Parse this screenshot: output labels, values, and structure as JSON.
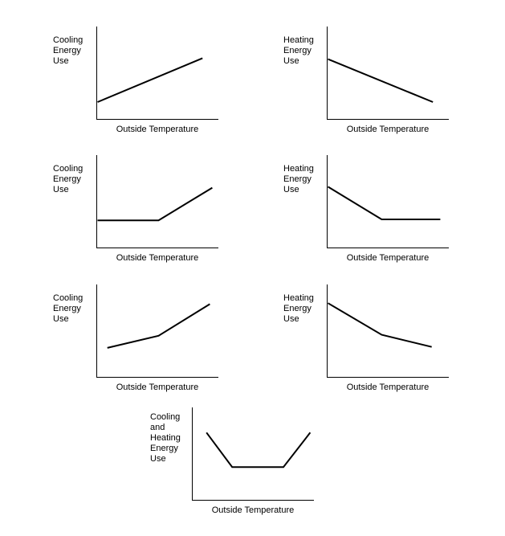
{
  "page": {
    "background": "#ffffff",
    "stroke_color": "#000000",
    "description": "Seven qualitative line charts of building energy use versus outside temperature; axes have no ticks or numbers"
  },
  "chart_data": [
    {
      "id": "cooling-linear",
      "type": "line",
      "ylabel": "Cooling\nEnergy\nUse",
      "xlabel": "Outside Temperature",
      "trend": "cooling energy use increases linearly with outside temperature",
      "axes": {
        "ticks": "none",
        "grid": false,
        "x_range_norm": [
          0,
          1
        ],
        "y_range_norm": [
          0,
          1
        ]
      },
      "series": [
        {
          "name": "cooling-energy",
          "points_norm": [
            [
              0.01,
              0.19
            ],
            [
              0.87,
              0.66
            ]
          ]
        }
      ]
    },
    {
      "id": "heating-linear",
      "type": "line",
      "ylabel": "Heating\nEnergy\nUse",
      "xlabel": "Outside Temperature",
      "trend": "heating energy use decreases linearly with outside temperature",
      "axes": {
        "ticks": "none",
        "grid": false,
        "x_range_norm": [
          0,
          1
        ],
        "y_range_norm": [
          0,
          1
        ]
      },
      "series": [
        {
          "name": "heating-energy",
          "points_norm": [
            [
              0.01,
              0.65
            ],
            [
              0.87,
              0.19
            ]
          ]
        }
      ]
    },
    {
      "id": "cooling-flat-then-rise",
      "type": "line",
      "ylabel": "Cooling\nEnergy\nUse",
      "xlabel": "Outside Temperature",
      "trend": "cooling energy use is constant at low temperature, then rises past a balance point",
      "axes": {
        "ticks": "none",
        "grid": false,
        "x_range_norm": [
          0,
          1
        ],
        "y_range_norm": [
          0,
          1
        ]
      },
      "series": [
        {
          "name": "cooling-energy",
          "points_norm": [
            [
              0.01,
              0.3
            ],
            [
              0.51,
              0.3
            ],
            [
              0.95,
              0.65
            ]
          ]
        }
      ]
    },
    {
      "id": "heating-fall-then-flat",
      "type": "line",
      "ylabel": "Heating\nEnergy\nUse",
      "xlabel": "Outside Temperature",
      "trend": "heating energy use falls with temperature, then stays constant past a balance point",
      "axes": {
        "ticks": "none",
        "grid": false,
        "x_range_norm": [
          0,
          1
        ],
        "y_range_norm": [
          0,
          1
        ]
      },
      "series": [
        {
          "name": "heating-energy",
          "points_norm": [
            [
              0.01,
              0.66
            ],
            [
              0.45,
              0.31
            ],
            [
              0.93,
              0.31
            ]
          ]
        }
      ]
    },
    {
      "id": "cooling-shallow-then-steep",
      "type": "line",
      "ylabel": "Cooling\nEnergy\nUse",
      "xlabel": "Outside Temperature",
      "trend": "cooling energy use rises slowly, then more steeply at higher temperatures",
      "axes": {
        "ticks": "none",
        "grid": false,
        "x_range_norm": [
          0,
          1
        ],
        "y_range_norm": [
          0,
          1
        ]
      },
      "series": [
        {
          "name": "cooling-energy",
          "points_norm": [
            [
              0.09,
              0.32
            ],
            [
              0.51,
              0.45
            ],
            [
              0.93,
              0.79
            ]
          ]
        }
      ]
    },
    {
      "id": "heating-steep-then-shallow",
      "type": "line",
      "ylabel": "Heating\nEnergy\nUse",
      "xlabel": "Outside Temperature",
      "trend": "heating energy use falls steeply, then more gradually at higher temperatures",
      "axes": {
        "ticks": "none",
        "grid": false,
        "x_range_norm": [
          0,
          1
        ],
        "y_range_norm": [
          0,
          1
        ]
      },
      "series": [
        {
          "name": "heating-energy",
          "points_norm": [
            [
              0.01,
              0.8
            ],
            [
              0.45,
              0.46
            ],
            [
              0.86,
              0.33
            ]
          ]
        }
      ]
    },
    {
      "id": "combined-u-shape",
      "type": "line",
      "ylabel": "Cooling\nand\nHeating\nEnergy\nUse",
      "xlabel": "Outside Temperature",
      "trend": "combined energy use is high at temperature extremes and flat at a minimum in the middle (U shape)",
      "axes": {
        "ticks": "none",
        "grid": false,
        "x_range_norm": [
          0,
          1
        ],
        "y_range_norm": [
          0,
          1
        ]
      },
      "series": [
        {
          "name": "combined-energy",
          "points_norm": [
            [
              0.12,
              0.73
            ],
            [
              0.33,
              0.36
            ],
            [
              0.75,
              0.36
            ],
            [
              0.97,
              0.73
            ]
          ]
        }
      ]
    }
  ]
}
